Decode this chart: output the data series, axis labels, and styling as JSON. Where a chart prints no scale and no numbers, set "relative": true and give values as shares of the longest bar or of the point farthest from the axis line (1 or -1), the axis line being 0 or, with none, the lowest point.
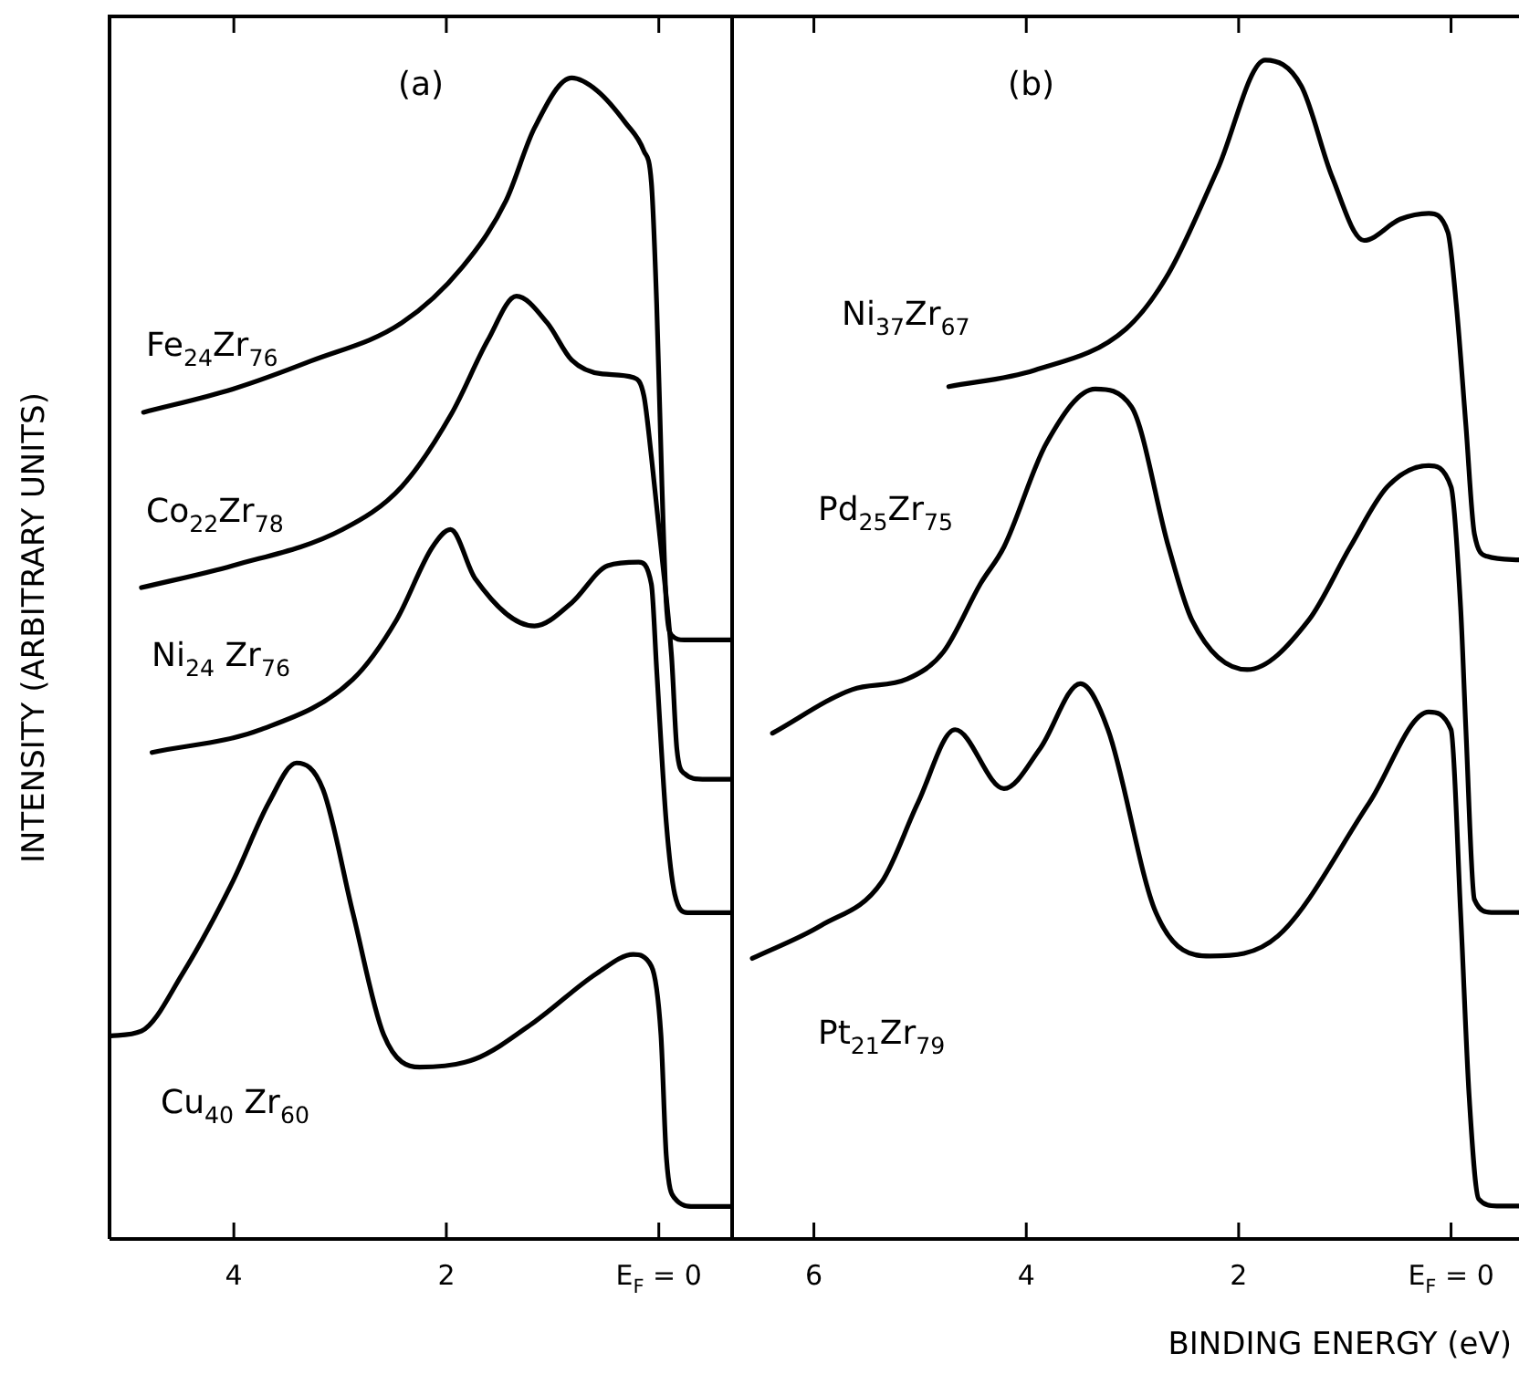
{
  "chart_data": [
    {
      "type": "line",
      "title": "(a)",
      "ylabel": "INTENSITY (ARBITRARY UNITS)",
      "relative": true,
      "xlim": [
        5.17,
        -0.69
      ],
      "xticks": [
        4,
        2,
        {
          "value": 0,
          "label": "E$_{F}$ = 0"
        }
      ],
      "marker": "none",
      "line_style": "solid",
      "series": [
        {
          "name": "Fe$_{24}$Zr$_{76}$",
          "color": "#000000",
          "x": [
            4.85,
            4.01,
            3.28,
            2.42,
            1.85,
            1.44,
            1.17,
            0.82,
            0.58,
            0.31,
            0.14,
            0.07,
            0.02,
            -0.03,
            -0.07,
            -0.12,
            -0.24,
            -0.69
          ],
          "values": [
            0.712,
            0.732,
            0.756,
            0.789,
            0.837,
            0.894,
            0.957,
            1,
            0.989,
            0.961,
            0.937,
            0.91,
            0.805,
            0.648,
            0.548,
            0.52,
            0.516,
            0.516
          ]
        },
        {
          "name": "Co$_{22}$Zr$_{78}$",
          "color": "#000000",
          "x": [
            4.87,
            4.01,
            2.98,
            2.42,
            1.95,
            1.61,
            1.34,
            1.05,
            0.82,
            0.53,
            0.24,
            0.14,
            0.07,
            -0.02,
            -0.12,
            -0.17,
            -0.24,
            -0.41,
            -0.69
          ],
          "values": [
            0.561,
            0.58,
            0.611,
            0.648,
            0.711,
            0.774,
            0.812,
            0.789,
            0.757,
            0.745,
            0.742,
            0.726,
            0.674,
            0.596,
            0.502,
            0.422,
            0.401,
            0.396,
            0.396
          ]
        },
        {
          "name": "Ni$_{24}$ Zr$_{76}$",
          "color": "#000000",
          "x": [
            4.77,
            3.74,
            2.88,
            2.47,
            2.13,
            1.96,
            1.73,
            1.17,
            0.82,
            0.48,
            0.19,
            0.07,
            0.02,
            -0.07,
            -0.15,
            -0.27,
            -0.69
          ],
          "values": [
            0.419,
            0.439,
            0.482,
            0.533,
            0.596,
            0.611,
            0.569,
            0.528,
            0.548,
            0.58,
            0.583,
            0.564,
            0.49,
            0.359,
            0.297,
            0.281,
            0.281
          ]
        },
        {
          "name": "Cu$_{40}$ Zr$_{60}$",
          "color": "#000000",
          "x": [
            5.16,
            4.87,
            4.48,
            4.01,
            3.67,
            3.41,
            3.16,
            2.88,
            2.59,
            2.25,
            1.73,
            1.17,
            0.58,
            0.24,
            0.07,
            -0.02,
            -0.07,
            -0.15,
            -0.33,
            -0.69
          ],
          "values": [
            0.175,
            0.179,
            0.229,
            0.308,
            0.376,
            0.41,
            0.387,
            0.281,
            0.176,
            0.148,
            0.155,
            0.187,
            0.229,
            0.245,
            0.235,
            0.176,
            0.072,
            0.035,
            0.028,
            0.028
          ]
        }
      ]
    },
    {
      "type": "line",
      "title": "(b)",
      "xlabel": "BINDING ENERGY (eV)",
      "relative": true,
      "xlim": [
        6.77,
        -0.64
      ],
      "xticks": [
        6,
        4,
        2,
        {
          "value": 0,
          "label": "E$_{F}$ = 0"
        }
      ],
      "marker": "none",
      "line_style": "solid",
      "series": [
        {
          "name": "Ni$_{37}$Zr$_{67}$",
          "color": "#000000",
          "x": [
            4.73,
            3.92,
            3.06,
            2.66,
            2.2,
            1.75,
            1.41,
            1.12,
            0.82,
            0.48,
            0.21,
            0.03,
            -0.05,
            -0.14,
            -0.22,
            -0.34,
            -0.64
          ],
          "values": [
            0.723,
            0.737,
            0.772,
            0.819,
            0.907,
            1,
            0.978,
            0.901,
            0.847,
            0.865,
            0.87,
            0.854,
            0.792,
            0.69,
            0.598,
            0.579,
            0.576
          ]
        },
        {
          "name": "Pd$_{25}$Zr$_{75}$",
          "color": "#000000",
          "x": [
            6.39,
            5.64,
            5.12,
            4.78,
            4.43,
            4.21,
            3.81,
            3.35,
            3.01,
            2.66,
            2.44,
            1.92,
            1.34,
            0.95,
            0.6,
            0.21,
            0.0,
            -0.09,
            -0.14,
            -0.22,
            -0.38,
            -0.64
          ],
          "values": [
            0.429,
            0.466,
            0.475,
            0.498,
            0.556,
            0.587,
            0.675,
            0.721,
            0.706,
            0.587,
            0.525,
            0.483,
            0.525,
            0.587,
            0.638,
            0.656,
            0.638,
            0.536,
            0.432,
            0.288,
            0.277,
            0.277
          ]
        },
        {
          "name": "Pt$_{21}$Zr$_{79}$",
          "color": "#000000",
          "x": [
            6.58,
            5.93,
            5.36,
            5.02,
            4.67,
            4.21,
            3.87,
            3.49,
            3.23,
            2.78,
            2.27,
            1.63,
            0.77,
            0.21,
            0.0,
            -0.09,
            -0.17,
            -0.26,
            -0.43,
            -0.64
          ],
          "values": [
            0.238,
            0.266,
            0.303,
            0.37,
            0.432,
            0.382,
            0.416,
            0.471,
            0.432,
            0.277,
            0.24,
            0.257,
            0.37,
            0.447,
            0.432,
            0.277,
            0.122,
            0.034,
            0.028,
            0.028
          ]
        }
      ]
    }
  ]
}
